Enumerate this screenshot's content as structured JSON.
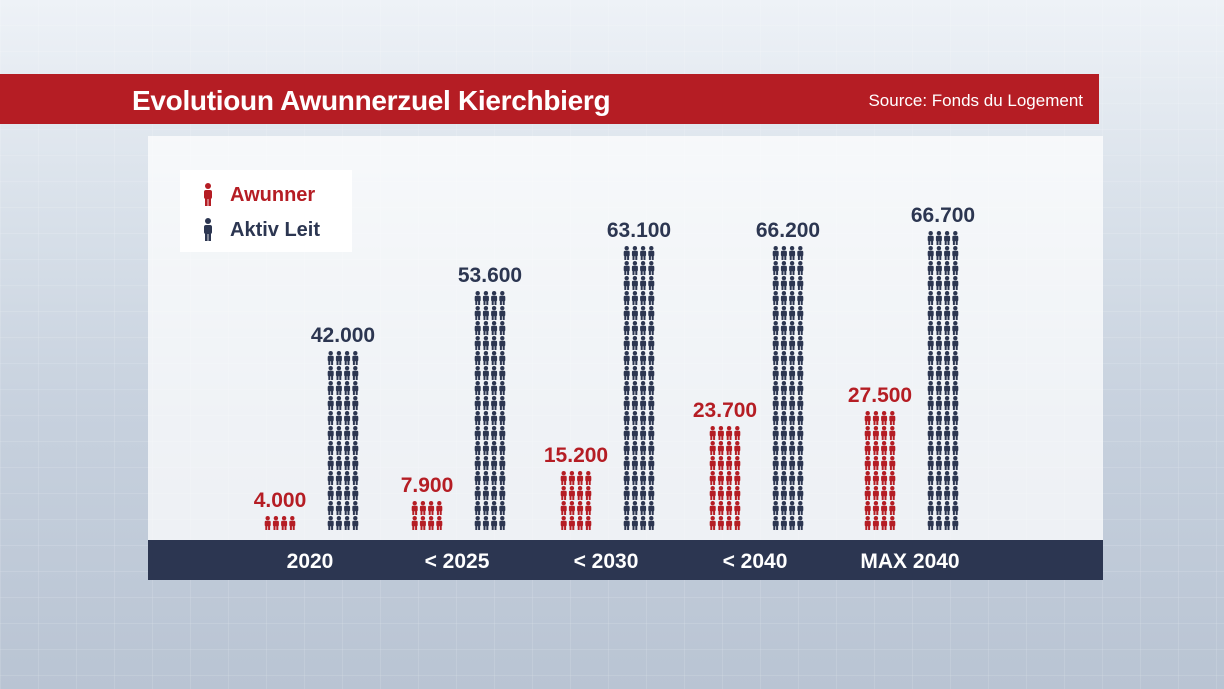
{
  "title": "Evolutioun Awunnerzuel Kierchbierg",
  "source": "Source: Fonds du Logement",
  "colors": {
    "residents": "#b51d24",
    "active_people": "#2c3651",
    "title_bar": "#b51d24",
    "axis_bar": "#2c3651"
  },
  "legend": {
    "items": [
      {
        "label": "Awunner",
        "icon": "person-icon-red"
      },
      {
        "label": "Aktiv Leit",
        "icon": "person-icon-navy"
      }
    ]
  },
  "chart_data": {
    "type": "bar",
    "categories": [
      "2020",
      "< 2025",
      "< 2030",
      "< 2040",
      "MAX 2040"
    ],
    "series": [
      {
        "name": "Awunner",
        "values": [
          4000,
          7900,
          15200,
          23700,
          27500
        ],
        "labels": [
          "4.000",
          "7.900",
          "15.200",
          "23.700",
          "27.500"
        ]
      },
      {
        "name": "Aktiv Leit",
        "values": [
          42000,
          53600,
          63100,
          66200,
          66700
        ],
        "labels": [
          "42.000",
          "53.600",
          "63.100",
          "66.200",
          "66.700"
        ]
      }
    ],
    "title": "Evolutioun Awunnerzuel Kierchbierg",
    "xlabel": "",
    "ylabel": "",
    "legend_position": "top-left",
    "grid": false
  }
}
